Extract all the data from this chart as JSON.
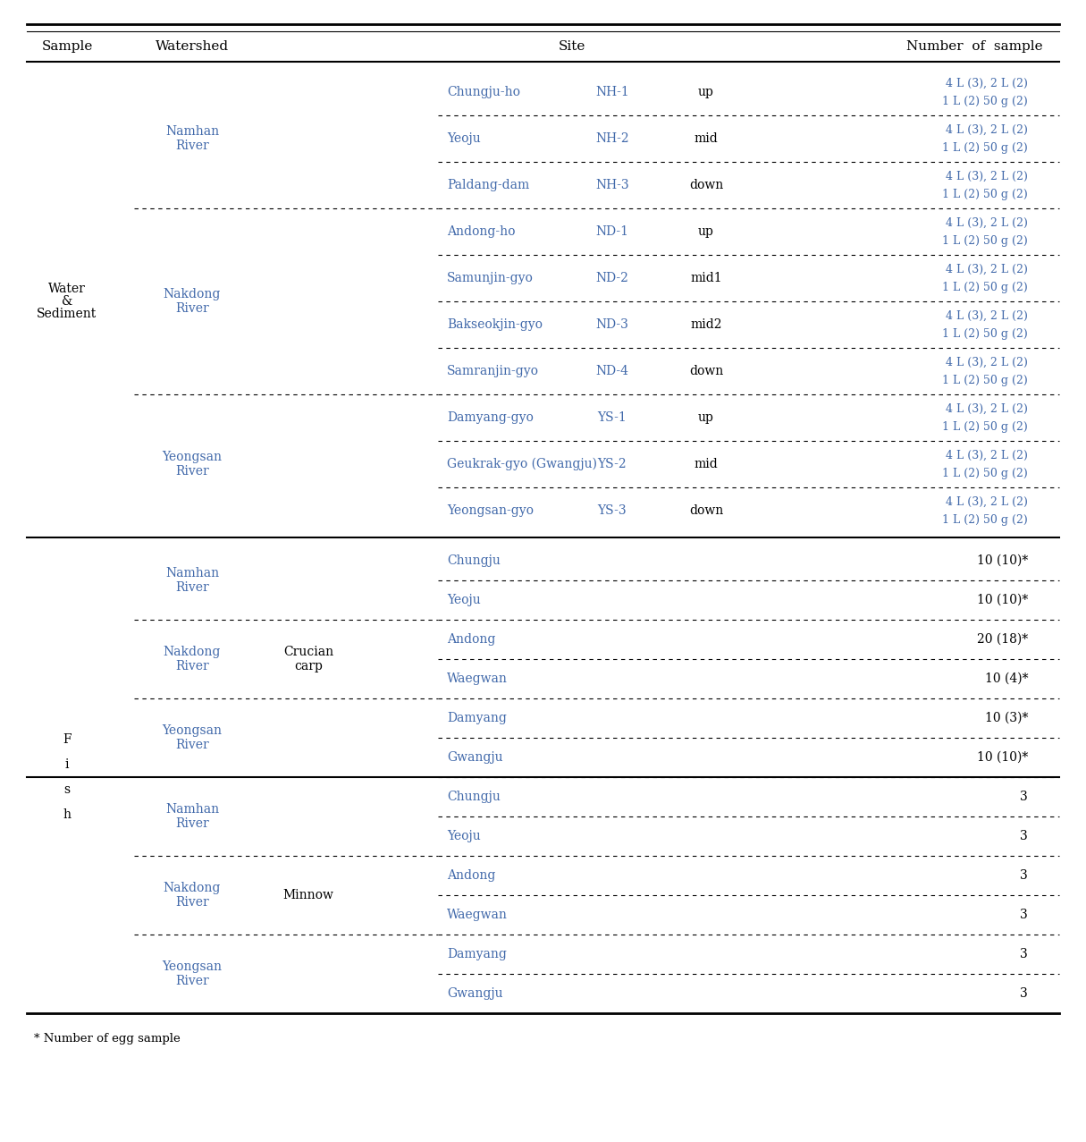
{
  "blue": "#4169AA",
  "black": "#000000",
  "fs_header": 11,
  "fs_body": 10,
  "fs_small": 9,
  "footnote": "* Number of egg sample",
  "water_data": [
    [
      "Chungju-ho",
      "NH-1",
      "up",
      "4 L (3), 2 L (2)",
      "1 L (2) 50 g (2)"
    ],
    [
      "Yeoju",
      "NH-2",
      "mid",
      "4 L (3), 2 L (2)",
      "1 L (2) 50 g (2)"
    ],
    [
      "Paldang-dam",
      "NH-3",
      "down",
      "4 L (3), 2 L (2)",
      "1 L (2) 50 g (2)"
    ],
    [
      "Andong-ho",
      "ND-1",
      "up",
      "4 L (3), 2 L (2)",
      "1 L (2) 50 g (2)"
    ],
    [
      "Samunjin-gyo",
      "ND-2",
      "mid1",
      "4 L (3), 2 L (2)",
      "1 L (2) 50 g (2)"
    ],
    [
      "Bakseokjin-gyo",
      "ND-3",
      "mid2",
      "4 L (3), 2 L (2)",
      "1 L (2) 50 g (2)"
    ],
    [
      "Samranjin-gyo",
      "ND-4",
      "down",
      "4 L (3), 2 L (2)",
      "1 L (2) 50 g (2)"
    ],
    [
      "Damyang-gyo",
      "YS-1",
      "up",
      "4 L (3), 2 L (2)",
      "1 L (2) 50 g (2)"
    ],
    [
      "Geukrak-gyo (Gwangju)",
      "YS-2",
      "mid",
      "4 L (3), 2 L (2)",
      "1 L (2) 50 g (2)"
    ],
    [
      "Yeongsan-gyo",
      "YS-3",
      "down",
      "4 L (3), 2 L (2)",
      "1 L (2) 50 g (2)"
    ]
  ],
  "water_watershed": [
    [
      "Namhan\nRiver",
      0,
      2
    ],
    [
      "Nakdong\nRiver",
      3,
      6
    ],
    [
      "Yeongsan\nRiver",
      7,
      9
    ]
  ],
  "fish_data": [
    [
      "Crucian\ncarp",
      "Namhan\nRiver",
      "Chungju",
      "10 (10)*"
    ],
    [
      "",
      "",
      "Yeoju",
      "10 (10)*"
    ],
    [
      "",
      "Nakdong\nRiver",
      "Andong",
      "20 (18)*"
    ],
    [
      "",
      "",
      "Waegwan",
      "10 (4)*"
    ],
    [
      "",
      "Yeongsan\nRiver",
      "Damyang",
      "10 (3)*"
    ],
    [
      "",
      "",
      "Gwangju",
      "10 (10)*"
    ],
    [
      "Minnow",
      "Namhan\nRiver",
      "Chungju",
      "3"
    ],
    [
      "",
      "",
      "Yeoju",
      "3"
    ],
    [
      "",
      "Nakdong\nRiver",
      "Andong",
      "3"
    ],
    [
      "",
      "",
      "Waegwan",
      "3"
    ],
    [
      "",
      "Yeongsan\nRiver",
      "Damyang",
      "3"
    ],
    [
      "",
      "",
      "Gwangju",
      "3"
    ]
  ],
  "fish_watershed": [
    [
      "Namhan\nRiver",
      0,
      1
    ],
    [
      "Nakdong\nRiver",
      2,
      3
    ],
    [
      "Yeongsan\nRiver",
      4,
      5
    ],
    [
      "Namhan\nRiver",
      6,
      7
    ],
    [
      "Nakdong\nRiver",
      8,
      9
    ],
    [
      "Yeongsan\nRiver",
      10,
      11
    ]
  ],
  "fish_species": [
    [
      "Crucian\ncarp",
      0,
      5
    ],
    [
      "Minnow",
      6,
      11
    ]
  ]
}
